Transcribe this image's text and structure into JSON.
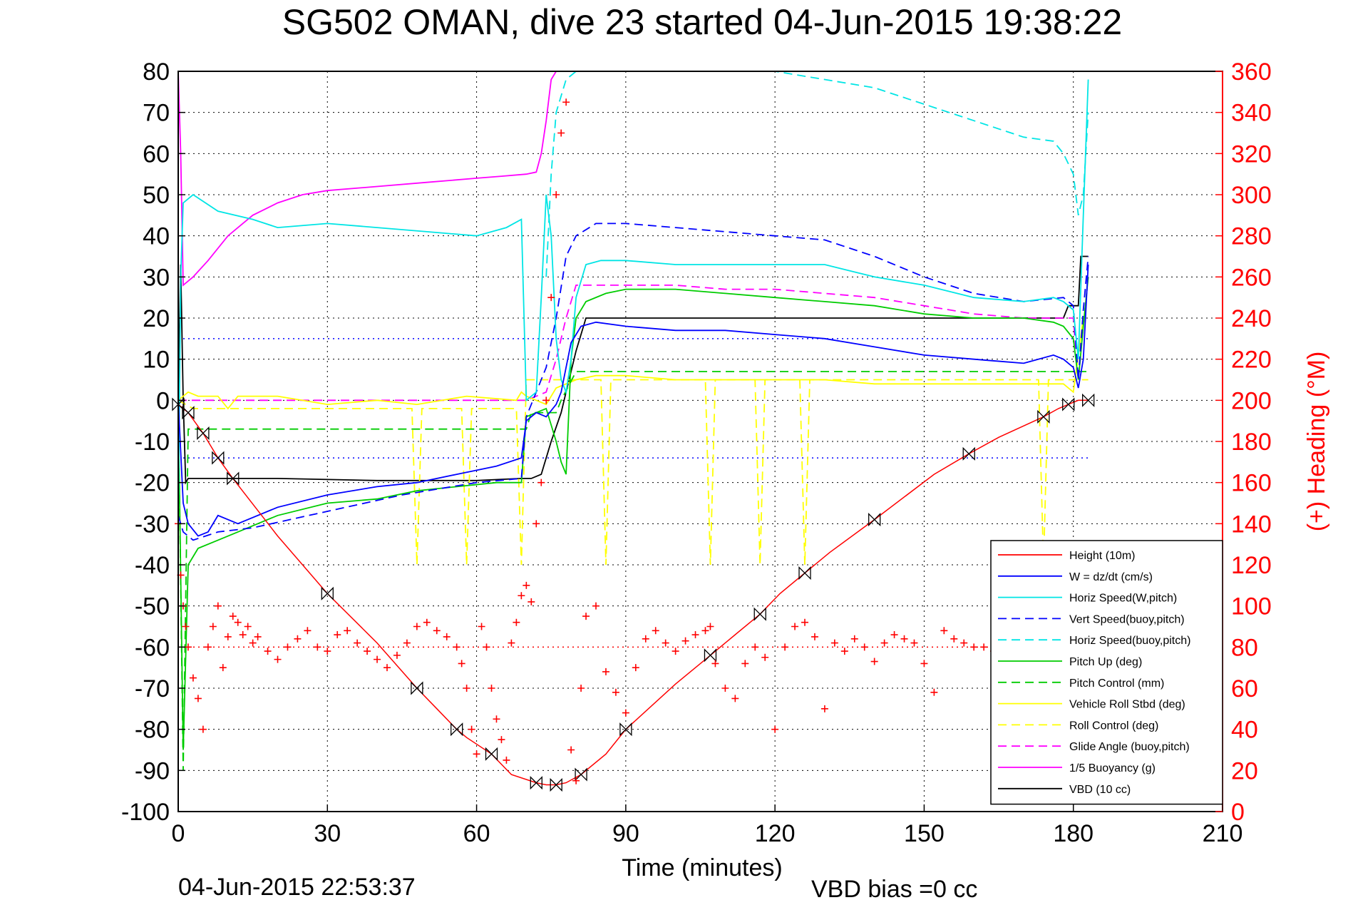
{
  "chart_data": {
    "type": "line",
    "title": "SG502 OMAN, dive 23 started 04-Jun-2015 19:38:22",
    "xlabel": "Time (minutes)",
    "ylabel_right": "(+) Heading (°M)",
    "footer_left": "04-Jun-2015 22:53:37",
    "footer_right": "VBD bias =0 cc",
    "xlim": [
      0,
      210
    ],
    "ylim": [
      -100,
      80
    ],
    "ylim_right": [
      0,
      360
    ],
    "x_ticks": [
      "0",
      "30",
      "60",
      "90",
      "120",
      "150",
      "180",
      "210"
    ],
    "y_ticks": [
      "80",
      "70",
      "60",
      "50",
      "40",
      "30",
      "20",
      "10",
      "0",
      "-10",
      "-20",
      "-30",
      "-40",
      "-50",
      "-60",
      "-70",
      "-80",
      "-90",
      "-100"
    ],
    "y_ticks_right": [
      "360",
      "340",
      "320",
      "300",
      "280",
      "260",
      "240",
      "220",
      "200",
      "180",
      "160",
      "140",
      "120",
      "100",
      "80",
      "60",
      "40",
      "20",
      "0"
    ],
    "grid": true,
    "legend_position": "bottom-right",
    "colors": {
      "right_axis": "#ff0000"
    },
    "series": [
      {
        "name": "Height (10m)",
        "color": "#ff0000",
        "dash": "solid",
        "marker": "bowtie",
        "x": [
          0,
          2,
          5,
          8,
          11,
          20,
          30,
          40,
          48,
          52,
          56,
          58,
          63,
          67,
          72,
          74,
          76,
          78,
          81,
          86,
          90,
          100,
          107,
          112,
          117,
          121,
          126,
          131,
          140,
          152,
          159,
          165,
          174,
          177,
          179,
          181,
          183
        ],
        "y": [
          -1,
          -3,
          -8,
          -14,
          -19,
          -33,
          -47,
          -59,
          -70,
          -75,
          -80,
          -82,
          -86,
          -91,
          -93,
          -93.5,
          -93.5,
          -93,
          -91,
          -86,
          -80,
          -69,
          -62,
          -57,
          -52,
          -47,
          -42,
          -37,
          -29,
          -18,
          -13,
          -9,
          -4,
          -2,
          -1,
          0,
          0
        ]
      },
      {
        "name": "W = dz/dt (cm/s)",
        "color": "#0000ff",
        "dash": "solid",
        "x": [
          0,
          1,
          2,
          4,
          6,
          8,
          12,
          20,
          30,
          40,
          48,
          56,
          64,
          69,
          70,
          72,
          74,
          76,
          77,
          78,
          79,
          81,
          84,
          90,
          100,
          110,
          120,
          130,
          140,
          150,
          160,
          170,
          176,
          178,
          180,
          181,
          182,
          183
        ],
        "y": [
          0,
          -25,
          -30,
          -33,
          -32,
          -28,
          -30,
          -26,
          -23,
          -21,
          -20,
          -18,
          -16,
          -14,
          -5,
          -3,
          -4,
          -1,
          2,
          8,
          14,
          18,
          19,
          18,
          17,
          17,
          16,
          15,
          13,
          11,
          10,
          9,
          11,
          10,
          8,
          3,
          10,
          33
        ]
      },
      {
        "name": "Horiz Speed(W,pitch)",
        "color": "#00e5e5",
        "dash": "solid",
        "x": [
          0,
          0.5,
          1,
          3,
          8,
          15,
          20,
          30,
          40,
          50,
          60,
          66,
          69,
          70,
          72,
          73,
          74,
          75,
          76,
          77,
          78,
          79,
          80,
          82,
          85,
          90,
          100,
          110,
          120,
          130,
          140,
          150,
          160,
          170,
          176,
          178,
          180,
          181,
          182,
          183
        ],
        "y": [
          -30,
          30,
          48,
          50,
          46,
          44,
          42,
          43,
          42,
          41,
          40,
          42,
          44,
          0,
          2,
          25,
          50,
          40,
          15,
          5,
          2,
          10,
          25,
          33,
          34,
          34,
          33,
          33,
          33,
          33,
          30,
          28,
          25,
          24,
          25,
          24,
          22,
          10,
          45,
          78
        ]
      },
      {
        "name": "Vert Speed(buoy,pitch)",
        "color": "#0000ff",
        "dash": "dashed",
        "x": [
          0,
          1,
          3,
          8,
          15,
          30,
          45,
          60,
          69,
          70,
          74,
          76,
          78,
          80,
          84,
          90,
          100,
          110,
          120,
          130,
          140,
          150,
          160,
          170,
          178,
          180,
          181,
          182,
          183
        ],
        "y": [
          -28,
          -32,
          -34,
          -32,
          -31,
          -27,
          -23,
          -20,
          -19,
          -4,
          8,
          20,
          35,
          40,
          43,
          43,
          42,
          41,
          40,
          39,
          35,
          30,
          26,
          24,
          25,
          23,
          5,
          22,
          35
        ]
      },
      {
        "name": "Horiz Speed(buoy,pitch)",
        "color": "#00e5e5",
        "dash": "dashed",
        "x": [
          74,
          75,
          76,
          78,
          80,
          85,
          90,
          100,
          110,
          120,
          130,
          140,
          150,
          160,
          170,
          176,
          178,
          180,
          181,
          182,
          183
        ],
        "y": [
          30,
          55,
          70,
          78,
          80,
          80,
          80,
          80,
          80,
          80,
          78,
          76,
          72,
          68,
          64,
          63,
          60,
          55,
          45,
          50,
          70
        ]
      },
      {
        "name": "Pitch Up (deg)",
        "color": "#00cc00",
        "dash": "solid",
        "x": [
          0,
          1,
          2,
          4,
          8,
          12,
          20,
          30,
          40,
          48,
          56,
          64,
          69,
          70,
          72,
          74,
          76,
          77,
          78,
          79,
          80,
          82,
          86,
          90,
          100,
          110,
          120,
          130,
          140,
          150,
          160,
          170,
          176,
          178,
          180,
          181,
          182,
          183
        ],
        "y": [
          0,
          -85,
          -40,
          -36,
          -34,
          -32,
          -28,
          -25,
          -24,
          -22,
          -21,
          -20,
          -20,
          -4,
          -3,
          -2,
          -10,
          -15,
          -18,
          10,
          20,
          24,
          26,
          27,
          27,
          26,
          25,
          24,
          23,
          21,
          20,
          20,
          19,
          18,
          15,
          5,
          18,
          30
        ]
      },
      {
        "name": "Pitch Control (mm)",
        "color": "#00cc00",
        "dash": "dashed",
        "x": [
          0,
          1,
          2,
          4,
          70,
          71,
          76,
          77,
          80,
          180,
          181,
          183
        ],
        "y": [
          0,
          -90,
          -7,
          -7,
          -7,
          -3,
          -3,
          0,
          7,
          7,
          7,
          7
        ]
      },
      {
        "name": "Vehicle Roll Stbd (deg)",
        "color": "#ffff00",
        "dash": "solid",
        "x": [
          0,
          2,
          4,
          8,
          10,
          12,
          20,
          30,
          40,
          48,
          58,
          68,
          69,
          70,
          74,
          76,
          80,
          84,
          90,
          100,
          110,
          120,
          130,
          140,
          150,
          160,
          170,
          178,
          180,
          182
        ],
        "y": [
          0,
          2,
          1,
          1,
          -2,
          1,
          1,
          -1,
          0,
          -1,
          1,
          0,
          2,
          1,
          -1,
          3,
          5,
          6,
          6,
          5,
          5,
          5,
          5,
          4,
          4,
          4,
          4,
          4,
          2,
          20
        ]
      },
      {
        "name": "Roll Control (deg)",
        "color": "#ffff00",
        "dash": "dashed",
        "x": [
          0,
          3,
          5,
          10,
          20,
          30,
          40,
          47,
          48,
          49,
          57,
          58,
          59,
          68,
          69,
          70,
          80,
          85,
          86,
          87,
          106,
          107,
          108,
          116,
          117,
          118,
          125,
          126,
          127,
          173,
          174,
          175,
          183
        ],
        "y": [
          0,
          -2,
          -2,
          -2,
          -2,
          -2,
          -2,
          -2,
          -40,
          -2,
          -2,
          -40,
          -2,
          -2,
          -40,
          5,
          5,
          5,
          -40,
          5,
          5,
          -40,
          5,
          5,
          -40,
          5,
          5,
          -40,
          5,
          5,
          -40,
          5,
          5
        ]
      },
      {
        "name": "Glide Angle (buoy,pitch)",
        "color": "#ff00ff",
        "dash": "dashed",
        "x": [
          0,
          70,
          74,
          76,
          78,
          80,
          90,
          100,
          110,
          120,
          130,
          140,
          150,
          160,
          170,
          180,
          181,
          182,
          183
        ],
        "y": [
          0,
          0,
          2,
          10,
          20,
          28,
          28,
          28,
          27,
          27,
          26,
          25,
          23,
          21,
          20,
          20,
          5,
          18,
          30
        ]
      },
      {
        "name": "1/5 Buoyancy (g)",
        "color": "#ff00ff",
        "dash": "solid",
        "x": [
          0,
          0.5,
          1,
          3,
          6,
          10,
          15,
          20,
          25,
          30,
          40,
          50,
          60,
          65,
          70,
          72,
          73,
          74,
          75,
          76
        ],
        "y": [
          80,
          60,
          28,
          30,
          34,
          40,
          45,
          48,
          50,
          51,
          52,
          53,
          54,
          54.5,
          55,
          55.5,
          60,
          68,
          78,
          80
        ]
      },
      {
        "name": "VBD (10 cc)",
        "color": "#000000",
        "dash": "solid",
        "x": [
          0,
          0.5,
          1,
          1.5,
          2,
          20,
          40,
          60,
          69,
          71,
          73,
          75,
          77,
          78,
          80,
          82,
          84,
          90,
          100,
          120,
          140,
          160,
          178,
          179,
          181,
          181.5,
          182,
          183
        ],
        "y": [
          0,
          33,
          0,
          -20,
          -19,
          -19,
          -19.5,
          -19.5,
          -19,
          -19,
          -18,
          -10,
          -3,
          2,
          12,
          20,
          20,
          20,
          20,
          20,
          20,
          20,
          20,
          23,
          23,
          35,
          35,
          35
        ]
      }
    ],
    "heading": {
      "name": "(+) Heading (°M)",
      "color": "#ff0000",
      "marker": "+",
      "x": [
        0,
        0.5,
        1,
        1.5,
        2,
        3,
        4,
        5,
        6,
        7,
        8,
        9,
        10,
        11,
        12,
        13,
        14,
        15,
        16,
        18,
        20,
        22,
        24,
        26,
        28,
        30,
        32,
        34,
        36,
        38,
        40,
        42,
        44,
        46,
        48,
        50,
        52,
        54,
        56,
        57,
        58,
        59,
        60,
        61,
        62,
        63,
        64,
        65,
        66,
        67,
        68,
        69,
        70,
        71,
        72,
        73,
        74,
        75,
        76,
        77,
        78,
        79,
        80,
        81,
        82,
        84,
        86,
        88,
        90,
        92,
        94,
        96,
        98,
        100,
        102,
        104,
        106,
        107,
        108,
        110,
        112,
        114,
        116,
        118,
        120,
        122,
        124,
        126,
        128,
        130,
        132,
        134,
        136,
        138,
        140,
        142,
        144,
        146,
        148,
        150,
        152,
        154,
        156,
        158,
        160,
        162,
        164,
        166,
        168,
        170,
        172,
        174,
        176,
        178,
        180,
        181,
        182
      ],
      "y": [
        140,
        115,
        100,
        90,
        80,
        65,
        55,
        40,
        80,
        90,
        100,
        70,
        85,
        95,
        92,
        86,
        90,
        82,
        85,
        78,
        74,
        80,
        84,
        88,
        80,
        78,
        86,
        88,
        82,
        78,
        74,
        70,
        76,
        82,
        90,
        92,
        88,
        85,
        80,
        72,
        60,
        40,
        28,
        90,
        80,
        60,
        45,
        35,
        25,
        82,
        92,
        105,
        110,
        102,
        140,
        160,
        200,
        250,
        300,
        330,
        345,
        30,
        15,
        60,
        95,
        100,
        68,
        58,
        48,
        70,
        84,
        88,
        82,
        78,
        83,
        86,
        88,
        90,
        72,
        60,
        55,
        72,
        80,
        75,
        40,
        80,
        90,
        92,
        85,
        50,
        82,
        78,
        84,
        80,
        73,
        82,
        86,
        84,
        82,
        72,
        58,
        88,
        84,
        82,
        80,
        80,
        78,
        82,
        84,
        86,
        70,
        80,
        82,
        84,
        80,
        78,
        80
      ]
    },
    "reference_lines": [
      {
        "name": "heading-ref",
        "color": "#ff0000",
        "dash": "dotted",
        "y_right": 80,
        "x": [
          0,
          183
        ]
      },
      {
        "name": "upper-ref",
        "color": "#0000ff",
        "dash": "dotted",
        "y": 15,
        "x": [
          0,
          183
        ]
      },
      {
        "name": "lower-ref",
        "color": "#0000ff",
        "dash": "dotted",
        "y": -14,
        "x": [
          0,
          183
        ]
      }
    ]
  }
}
